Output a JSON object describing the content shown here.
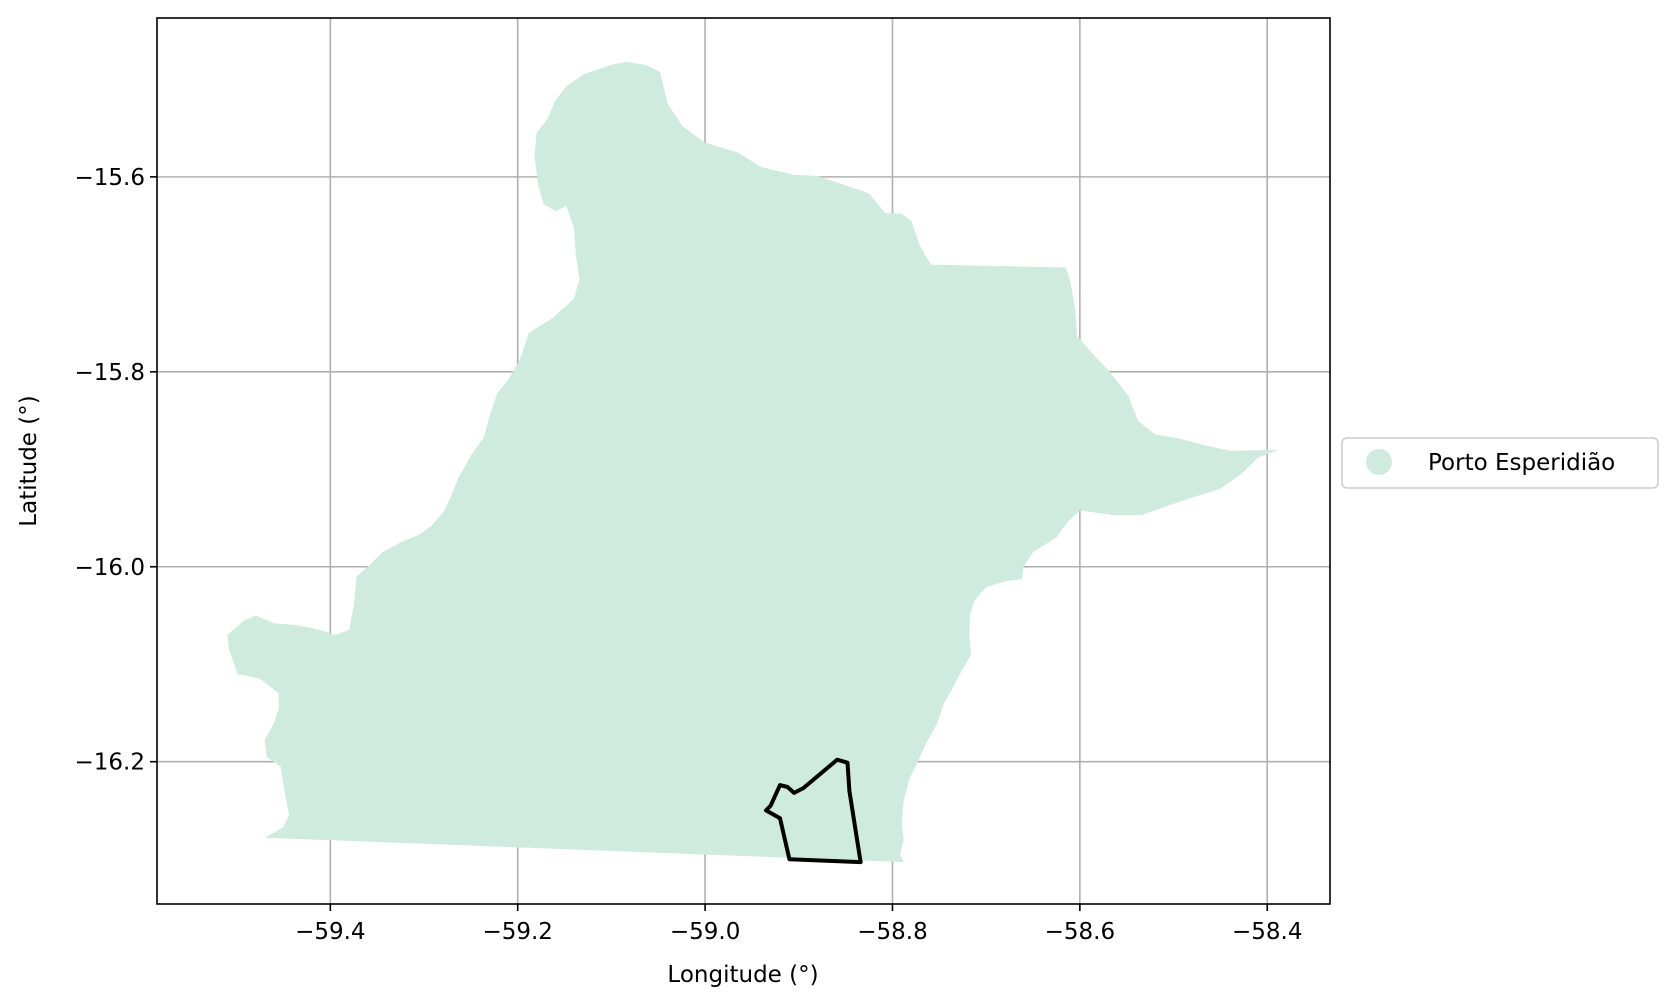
{
  "map": {
    "xlabel": "Longitude (°)",
    "ylabel": "Latitude (°)",
    "xlim": [
      -59.585,
      -58.333
    ],
    "ylim": [
      -16.346,
      -15.437
    ],
    "x_ticks": [
      -59.4,
      -59.2,
      -59.0,
      -58.8,
      -58.6,
      -58.4
    ],
    "x_tick_labels": [
      "−59.4",
      "−59.2",
      "−59.0",
      "−58.8",
      "−58.6",
      "−58.4"
    ],
    "y_ticks": [
      -15.6,
      -15.8,
      -16.0,
      -16.2
    ],
    "y_tick_labels": [
      "−15.6",
      "−15.8",
      "−16.0",
      "−16.2"
    ],
    "grid": true,
    "legend_placement": "right, outside plot",
    "colors": {
      "region_fill": "#cfebdf",
      "outline": "#000000",
      "grid": "#b0b0b0"
    },
    "layers": [
      {
        "name": "Porto Esperidião",
        "type": "polygon",
        "boundary_lonlat": [
          [
            -59.084,
            -15.482
          ],
          [
            -59.064,
            -15.485
          ],
          [
            -59.048,
            -15.492
          ],
          [
            -59.04,
            -15.525
          ],
          [
            -59.024,
            -15.548
          ],
          [
            -59.0,
            -15.565
          ],
          [
            -58.965,
            -15.575
          ],
          [
            -58.94,
            -15.59
          ],
          [
            -58.905,
            -15.598
          ],
          [
            -58.88,
            -15.599
          ],
          [
            -58.825,
            -15.617
          ],
          [
            -58.808,
            -15.637
          ],
          [
            -58.79,
            -15.638
          ],
          [
            -58.78,
            -15.645
          ],
          [
            -58.771,
            -15.67
          ],
          [
            -58.759,
            -15.69
          ],
          [
            -58.615,
            -15.693
          ],
          [
            -58.61,
            -15.708
          ],
          [
            -58.605,
            -15.736
          ],
          [
            -58.603,
            -15.763
          ],
          [
            -58.586,
            -15.782
          ],
          [
            -58.57,
            -15.798
          ],
          [
            -58.56,
            -15.81
          ],
          [
            -58.548,
            -15.825
          ],
          [
            -58.538,
            -15.85
          ],
          [
            -58.52,
            -15.864
          ],
          [
            -58.496,
            -15.868
          ],
          [
            -58.468,
            -15.875
          ],
          [
            -58.44,
            -15.881
          ],
          [
            -58.388,
            -15.88
          ],
          [
            -58.41,
            -15.888
          ],
          [
            -58.428,
            -15.905
          ],
          [
            -58.45,
            -15.92
          ],
          [
            -58.49,
            -15.932
          ],
          [
            -58.534,
            -15.947
          ],
          [
            -58.565,
            -15.947
          ],
          [
            -58.6,
            -15.942
          ],
          [
            -58.614,
            -15.955
          ],
          [
            -58.625,
            -15.97
          ],
          [
            -58.65,
            -15.985
          ],
          [
            -58.66,
            -16.0
          ],
          [
            -58.662,
            -16.013
          ],
          [
            -58.68,
            -16.015
          ],
          [
            -58.7,
            -16.021
          ],
          [
            -58.712,
            -16.034
          ],
          [
            -58.717,
            -16.048
          ],
          [
            -58.718,
            -16.07
          ],
          [
            -58.716,
            -16.09
          ],
          [
            -58.728,
            -16.11
          ],
          [
            -58.736,
            -16.125
          ],
          [
            -58.745,
            -16.14
          ],
          [
            -58.752,
            -16.16
          ],
          [
            -58.765,
            -16.183
          ],
          [
            -58.772,
            -16.198
          ],
          [
            -58.782,
            -16.218
          ],
          [
            -58.788,
            -16.24
          ],
          [
            -58.79,
            -16.262
          ],
          [
            -58.788,
            -16.28
          ],
          [
            -58.792,
            -16.295
          ],
          [
            -58.788,
            -16.303
          ],
          [
            -59.47,
            -16.278
          ],
          [
            -59.45,
            -16.267
          ],
          [
            -59.444,
            -16.255
          ],
          [
            -59.449,
            -16.23
          ],
          [
            -59.453,
            -16.205
          ],
          [
            -59.468,
            -16.195
          ],
          [
            -59.47,
            -16.178
          ],
          [
            -59.46,
            -16.16
          ],
          [
            -59.455,
            -16.145
          ],
          [
            -59.455,
            -16.13
          ],
          [
            -59.475,
            -16.115
          ],
          [
            -59.499,
            -16.11
          ],
          [
            -59.508,
            -16.085
          ],
          [
            -59.51,
            -16.07
          ],
          [
            -59.492,
            -16.055
          ],
          [
            -59.48,
            -16.05
          ],
          [
            -59.46,
            -16.058
          ],
          [
            -59.435,
            -16.06
          ],
          [
            -59.41,
            -16.065
          ],
          [
            -59.395,
            -16.07
          ],
          [
            -59.38,
            -16.065
          ],
          [
            -59.375,
            -16.04
          ],
          [
            -59.372,
            -16.01
          ],
          [
            -59.358,
            -15.998
          ],
          [
            -59.344,
            -15.985
          ],
          [
            -59.325,
            -15.975
          ],
          [
            -59.305,
            -15.967
          ],
          [
            -59.292,
            -15.958
          ],
          [
            -59.278,
            -15.942
          ],
          [
            -59.27,
            -15.925
          ],
          [
            -59.263,
            -15.908
          ],
          [
            -59.25,
            -15.886
          ],
          [
            -59.236,
            -15.867
          ],
          [
            -59.23,
            -15.845
          ],
          [
            -59.222,
            -15.822
          ],
          [
            -59.21,
            -15.808
          ],
          [
            -59.198,
            -15.788
          ],
          [
            -59.188,
            -15.76
          ],
          [
            -59.163,
            -15.745
          ],
          [
            -59.14,
            -15.725
          ],
          [
            -59.134,
            -15.705
          ],
          [
            -59.138,
            -15.68
          ],
          [
            -59.14,
            -15.652
          ],
          [
            -59.148,
            -15.63
          ],
          [
            -59.16,
            -15.635
          ],
          [
            -59.172,
            -15.628
          ],
          [
            -59.178,
            -15.61
          ],
          [
            -59.182,
            -15.58
          ],
          [
            -59.18,
            -15.555
          ],
          [
            -59.168,
            -15.54
          ],
          [
            -59.16,
            -15.522
          ],
          [
            -59.148,
            -15.507
          ],
          [
            -59.13,
            -15.495
          ],
          [
            -59.1,
            -15.485
          ]
        ]
      },
      {
        "name": "outlined area",
        "type": "outline",
        "boundary_lonlat": [
          [
            -58.859,
            -16.198
          ],
          [
            -58.848,
            -16.201
          ],
          [
            -58.846,
            -16.23
          ],
          [
            -58.834,
            -16.303
          ],
          [
            -58.91,
            -16.3
          ],
          [
            -58.92,
            -16.258
          ],
          [
            -58.935,
            -16.25
          ],
          [
            -58.93,
            -16.245
          ],
          [
            -58.92,
            -16.224
          ],
          [
            -58.912,
            -16.226
          ],
          [
            -58.905,
            -16.232
          ],
          [
            -58.895,
            -16.227
          ]
        ]
      }
    ]
  },
  "legend": {
    "items": [
      {
        "label": "Porto Esperidião",
        "color": "#cfebdf"
      }
    ]
  }
}
